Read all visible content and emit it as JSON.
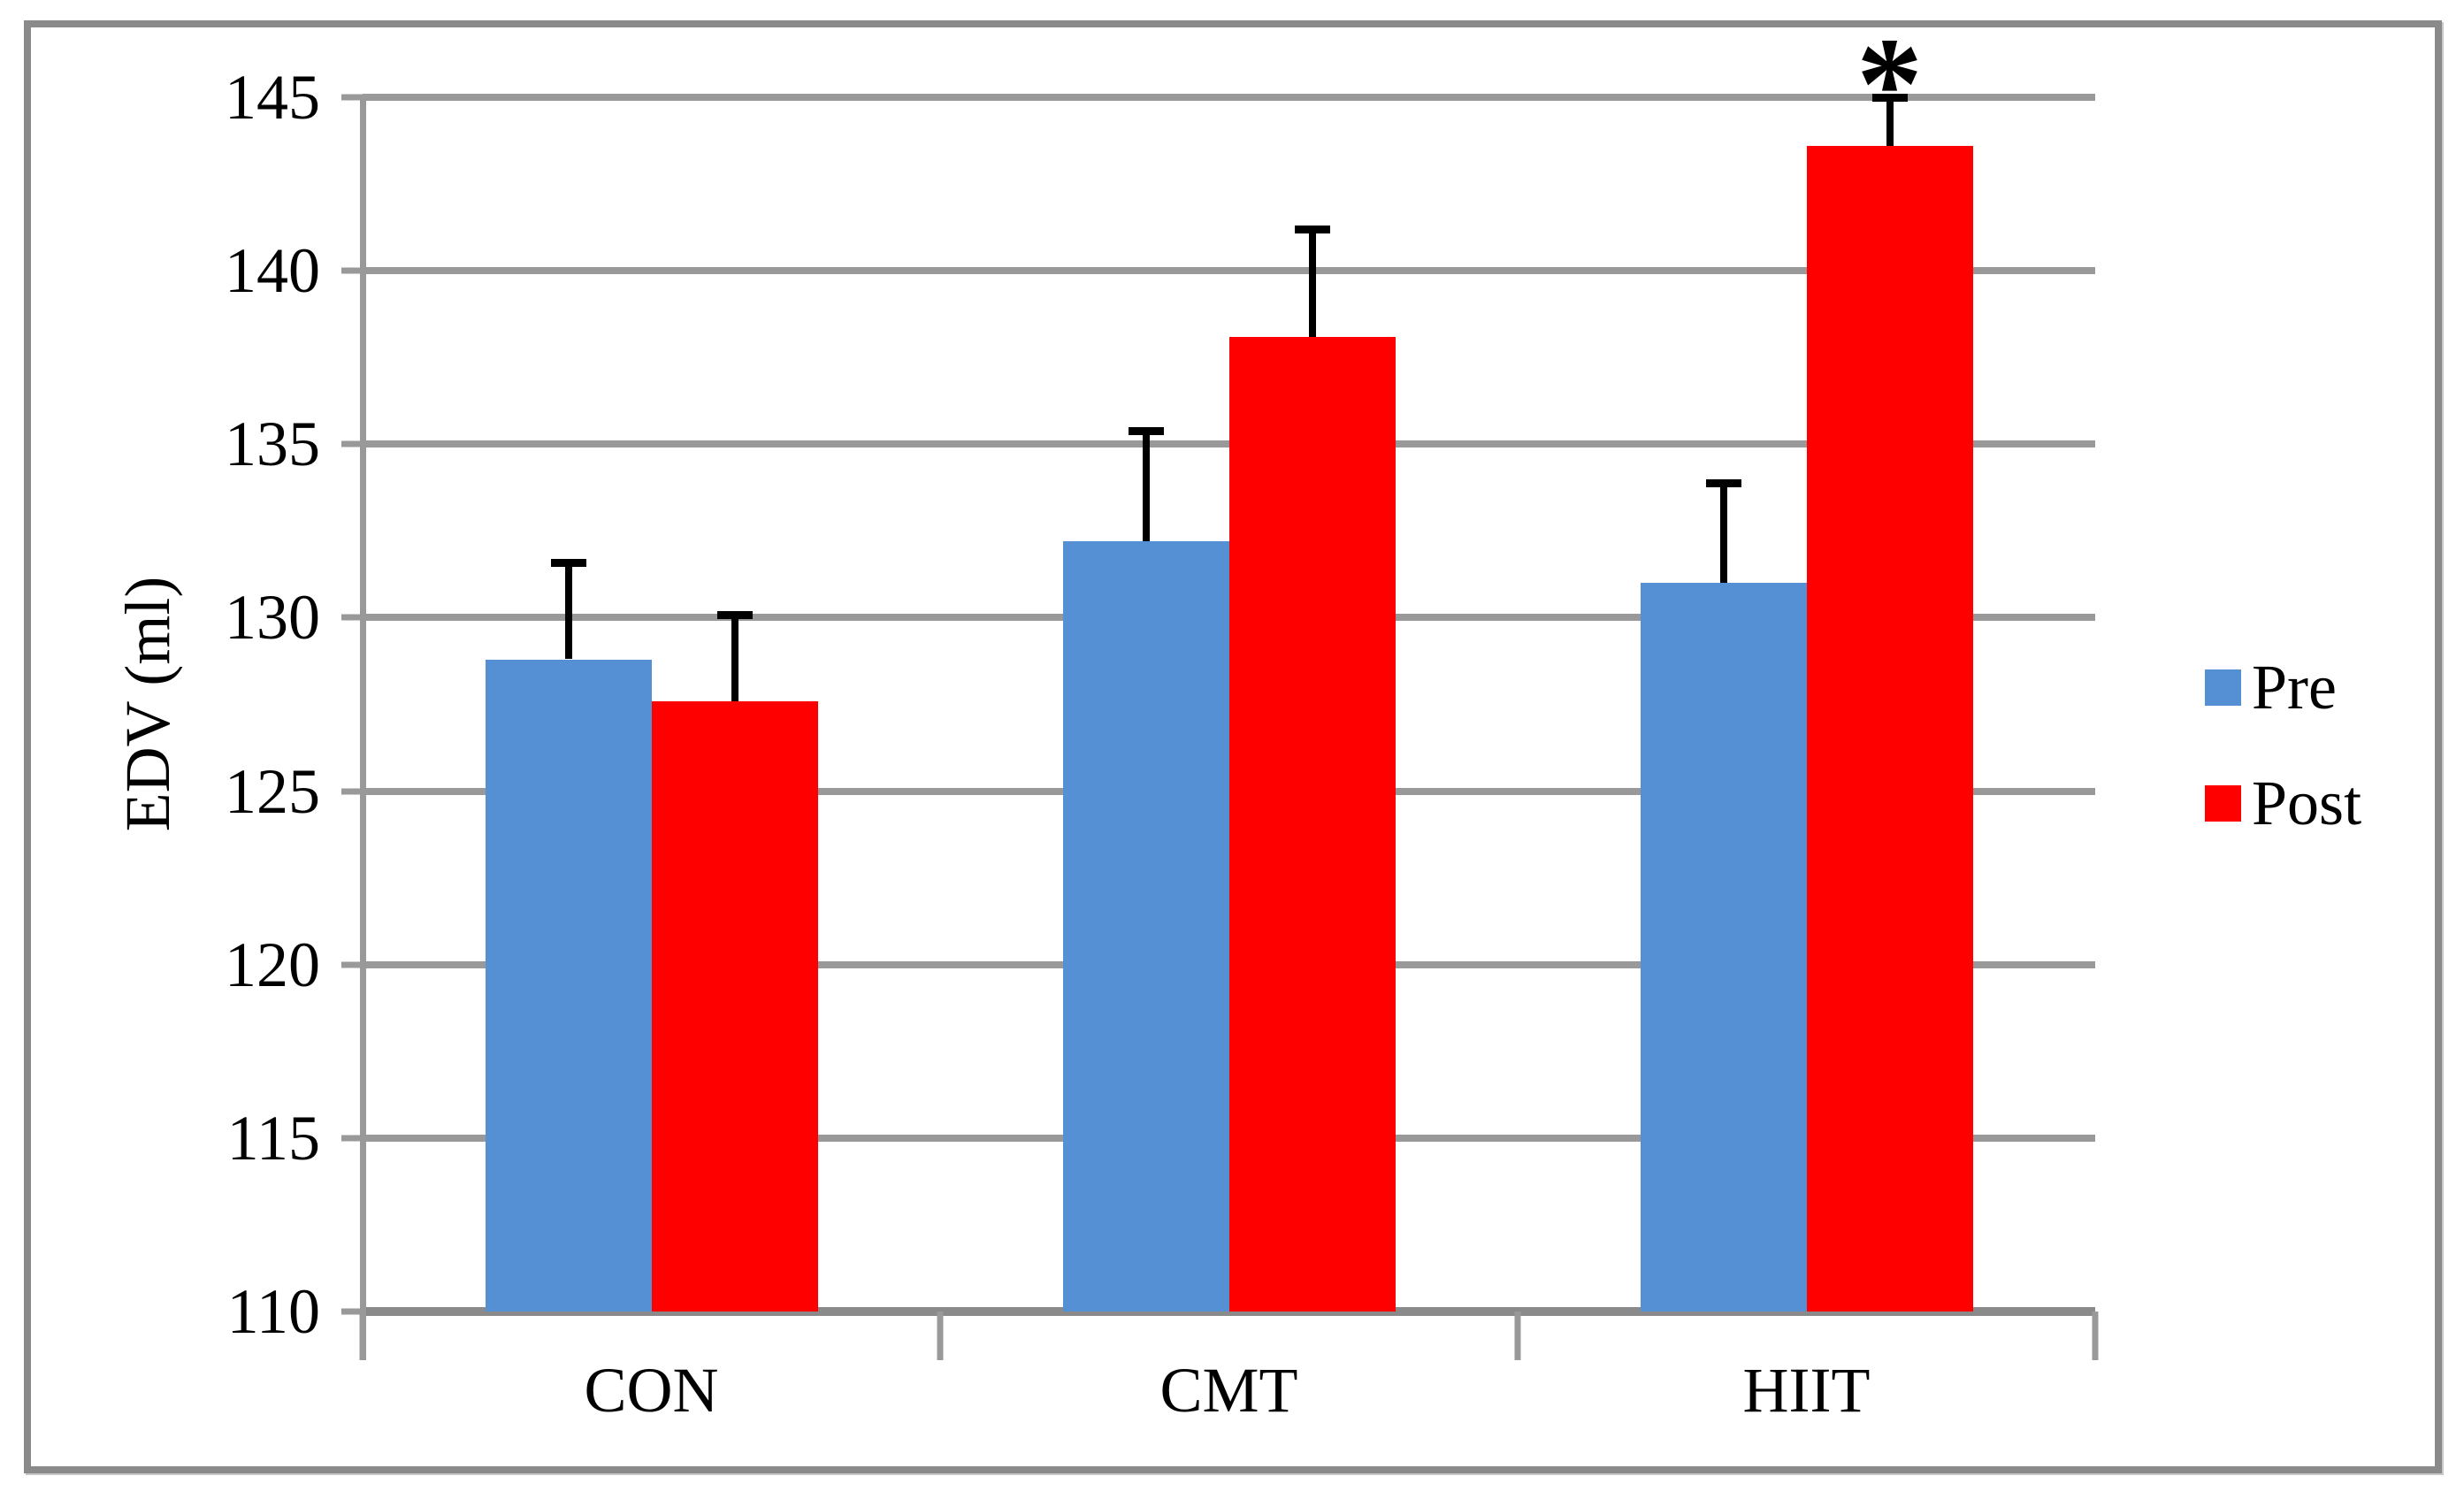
{
  "chart_data": {
    "type": "bar",
    "title": "",
    "categories": [
      "CON",
      "CMT",
      "HIIT"
    ],
    "series": [
      {
        "name": "Pre",
        "color": "#5590d5",
        "values": [
          128.8,
          132.2,
          131.0
        ],
        "upper_errors": [
          2.9,
          3.3,
          3.0
        ]
      },
      {
        "name": "Post",
        "color": "#ff0000",
        "values": [
          127.6,
          138.1,
          143.6
        ],
        "upper_errors": [
          2.6,
          3.2,
          1.5
        ]
      }
    ],
    "xlabel": "",
    "ylabel": "EDV (ml)",
    "ylim": [
      110,
      145
    ],
    "ytick_step": 5,
    "yticks": [
      110,
      115,
      120,
      125,
      130,
      135,
      140,
      145
    ],
    "grid": "horizontal-only",
    "error_bars": "upper-only",
    "legend_position": "right-middle",
    "annotations": [
      {
        "text": "*",
        "category": "HIIT",
        "series": "Post",
        "meaning": "marks HIIT Post bar"
      }
    ],
    "colors": {
      "gridline": "#999999",
      "figure_border": "#8a8a8a",
      "error_bar": "#000000",
      "text": "#000000",
      "background": "#ffffff"
    }
  }
}
